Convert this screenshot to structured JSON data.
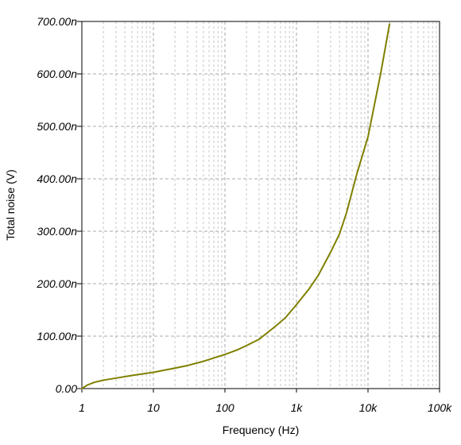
{
  "chart_data": {
    "type": "line",
    "title": "",
    "xlabel": "Frequency (Hz)",
    "ylabel": "Total noise (V)",
    "x_scale": "log",
    "xlim": [
      1,
      100000
    ],
    "ylim": [
      0,
      700
    ],
    "y_unit": "nV",
    "grid": true,
    "x_ticks": [
      {
        "value": 1,
        "label": "1"
      },
      {
        "value": 10,
        "label": "10"
      },
      {
        "value": 100,
        "label": "100"
      },
      {
        "value": 1000,
        "label": "1k"
      },
      {
        "value": 10000,
        "label": "10k"
      },
      {
        "value": 100000,
        "label": "100k"
      }
    ],
    "y_ticks": [
      {
        "value": 0,
        "label": "0.00"
      },
      {
        "value": 100,
        "label": "100.00n"
      },
      {
        "value": 200,
        "label": "200.00n"
      },
      {
        "value": 300,
        "label": "300.00n"
      },
      {
        "value": 400,
        "label": "400.00n"
      },
      {
        "value": 500,
        "label": "500.00n"
      },
      {
        "value": 600,
        "label": "600.00n"
      },
      {
        "value": 700,
        "label": "700.00n"
      }
    ],
    "series": [
      {
        "color": "#808000",
        "x": [
          1,
          1.2,
          1.5,
          2,
          3,
          5,
          10,
          20,
          30,
          50,
          100,
          150,
          200,
          300,
          500,
          700,
          1000,
          1500,
          2000,
          3000,
          4000,
          5000,
          7000,
          10000,
          15000,
          20000
        ],
        "y": [
          0,
          7,
          12,
          16,
          20,
          25,
          31,
          39,
          44,
          52,
          65,
          74,
          82,
          94,
          118,
          135,
          160,
          190,
          215,
          260,
          295,
          335,
          410,
          480,
          600,
          695
        ]
      }
    ]
  }
}
